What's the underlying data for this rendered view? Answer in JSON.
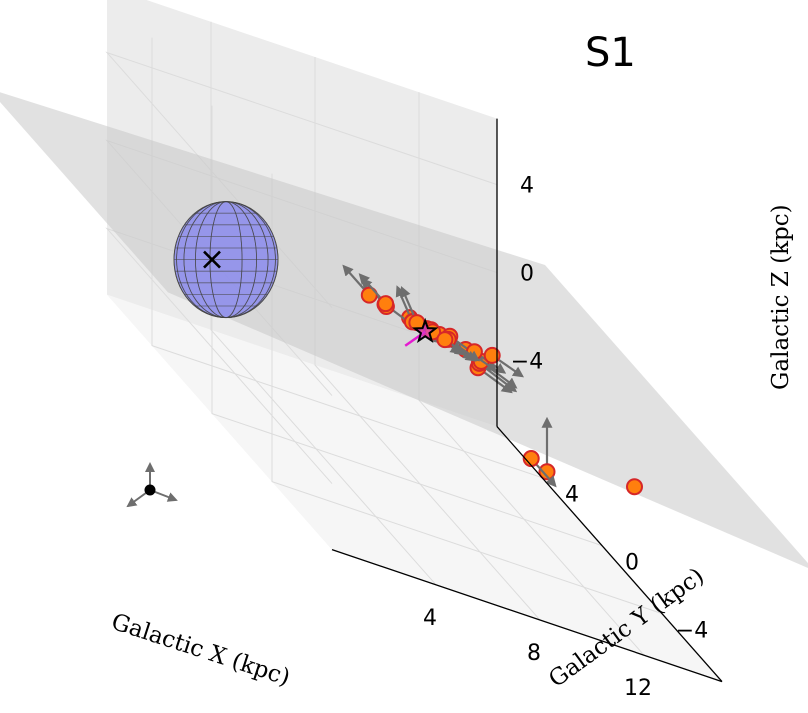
{
  "title": "S1",
  "chart_data": {
    "type": "scatter",
    "title": "S1",
    "xlabel": "Galactic X (kpc)",
    "ylabel": "Galactic Y (kpc)",
    "zlabel": "Galactic Z (kpc)",
    "x_ticks": [
      "4",
      "8",
      "12"
    ],
    "y_ticks": [
      "−4",
      "0",
      "4"
    ],
    "z_ticks": [
      "4",
      "0",
      "−4"
    ],
    "xlim": [
      0,
      15
    ],
    "ylim": [
      -8,
      7
    ],
    "zlim": [
      -7,
      7
    ],
    "galactic_plane_z": 0,
    "grid": true,
    "colors": {
      "cluster_fill": "#ff7f0e",
      "cluster_edge": "#d62728",
      "velocity_arrow": "#6e6e6e",
      "sun_velocity": "#e41ad0",
      "center_body": "#8080f0",
      "plane": "#c8c8c8"
    },
    "markers": [
      {
        "name": "galactic-center",
        "symbol": "x",
        "x": 0,
        "y": 0,
        "z": 0
      },
      {
        "name": "sun",
        "symbol": "star",
        "x": 8.2,
        "y": 0,
        "z": 0
      }
    ],
    "series": [
      {
        "points": [
          {
            "x": 8.5,
            "y": -3.0,
            "z": 0.8,
            "vx": 0.0,
            "vy": -2.2,
            "vz": 0.6
          },
          {
            "x": 8.9,
            "y": -2.4,
            "z": 0.7,
            "vx": 0.0,
            "vy": -2.4,
            "vz": 0.6
          },
          {
            "x": 9.2,
            "y": -2.0,
            "z": 0.6,
            "vx": 0.0,
            "vy": -2.3,
            "vz": 0.6
          },
          {
            "x": 8.6,
            "y": -2.0,
            "z": 0.9,
            "vx": 0.0,
            "vy": -2.0,
            "vz": 0.6
          },
          {
            "x": 8.0,
            "y": -1.3,
            "z": 0.8,
            "vx": 0.0,
            "vy": -2.2,
            "vz": 0.6
          },
          {
            "x": 7.8,
            "y": -0.8,
            "z": 0.6,
            "vx": 0.0,
            "vy": -2.2,
            "vz": 0.6
          },
          {
            "x": 8.2,
            "y": -0.4,
            "z": 0.4,
            "vx": 0.0,
            "vy": -2.0,
            "vz": 0.6
          },
          {
            "x": 8.8,
            "y": -0.6,
            "z": 0.5,
            "vx": 0.0,
            "vy": -2.1,
            "vz": 0.6
          },
          {
            "x": 9.4,
            "y": -1.2,
            "z": 0.5,
            "vx": 0.0,
            "vy": -2.0,
            "vz": 0.6
          },
          {
            "x": 10.2,
            "y": -1.0,
            "z": 0.5,
            "vx": 0.0,
            "vy": -2.0,
            "vz": 0.6
          },
          {
            "x": 7.6,
            "y": 0.0,
            "z": 0.4,
            "vx": 0.0,
            "vy": -2.2,
            "vz": 0.6
          },
          {
            "x": 7.0,
            "y": 0.6,
            "z": 0.3,
            "vx": 0.0,
            "vy": -2.3,
            "vz": 0.6
          },
          {
            "x": 8.0,
            "y": 0.5,
            "z": 0.0,
            "vx": 0.0,
            "vy": -2.0,
            "vz": 0.6
          },
          {
            "x": 8.6,
            "y": 0.2,
            "z": 0.0,
            "vx": 0.0,
            "vy": -2.1,
            "vz": 0.6
          },
          {
            "x": 9.2,
            "y": 0.2,
            "z": -0.1,
            "vx": 0.0,
            "vy": -2.0,
            "vz": 0.6
          },
          {
            "x": 8.9,
            "y": -0.1,
            "z": 0.0,
            "vx": 0.0,
            "vy": -2.0,
            "vz": 0.6
          },
          {
            "x": 7.4,
            "y": 1.2,
            "z": -0.1,
            "vx": 0.0,
            "vy": 1.6,
            "vz": 0.0
          },
          {
            "x": 6.8,
            "y": 1.3,
            "z": 0.1,
            "vx": 0.0,
            "vy": 1.7,
            "vz": 0.0
          },
          {
            "x": 8.4,
            "y": 1.2,
            "z": -0.4,
            "vx": 0.0,
            "vy": 1.0,
            "vz": 0.8
          },
          {
            "x": 8.4,
            "y": 0.9,
            "z": -0.2,
            "vx": 0.0,
            "vy": 1.0,
            "vz": 0.8
          },
          {
            "x": 7.6,
            "y": 1.6,
            "z": -0.2,
            "vx": 0.0,
            "vy": 1.7,
            "vz": 0.0
          },
          {
            "x": 12.5,
            "y": -6.5,
            "z": -0.3,
            "vx": 0.0,
            "vy": 0.0,
            "vz": 0.0
          },
          {
            "x": 13.0,
            "y": 0.2,
            "z": -4.6,
            "vx": 0.0,
            "vy": 0.0,
            "vz": 2.4
          },
          {
            "x": 13.2,
            "y": 1.6,
            "z": -5.0,
            "vx": 0.0,
            "vy": -1.6,
            "vz": 0.0
          }
        ]
      }
    ]
  }
}
